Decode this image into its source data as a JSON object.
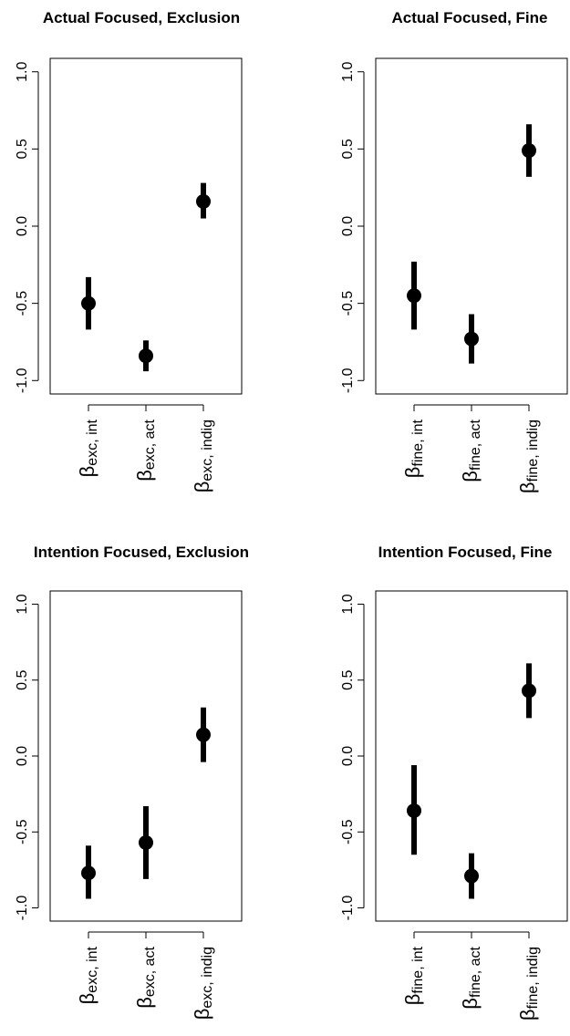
{
  "chart_data": [
    {
      "type": "pointrange",
      "title": "Actual Focused, Exclusion",
      "ylim": [
        -1.0,
        1.0
      ],
      "yticks": [
        1.0,
        0.5,
        0.0,
        -0.5,
        -1.0
      ],
      "ytick_labels": [
        "1.0",
        "0.5",
        "0.0",
        "-0.5",
        "-1.0"
      ],
      "grid": false,
      "categories": [
        {
          "symbol": "β",
          "subscript": "exc, int"
        },
        {
          "symbol": "β",
          "subscript": "exc, act"
        },
        {
          "symbol": "β",
          "subscript": "exc, indig"
        }
      ],
      "points": [
        {
          "estimate": -0.5,
          "lower": -0.67,
          "upper": -0.33
        },
        {
          "estimate": -0.84,
          "lower": -0.94,
          "upper": -0.74
        },
        {
          "estimate": 0.16,
          "lower": 0.05,
          "upper": 0.28
        }
      ]
    },
    {
      "type": "pointrange",
      "title": "Actual Focused, Fine",
      "ylim": [
        -1.0,
        1.0
      ],
      "yticks": [
        1.0,
        0.5,
        0.0,
        -0.5,
        -1.0
      ],
      "ytick_labels": [
        "1.0",
        "0.5",
        "0.0",
        "-0.5",
        "-1.0"
      ],
      "grid": false,
      "categories": [
        {
          "symbol": "β",
          "subscript": "fine, int"
        },
        {
          "symbol": "β",
          "subscript": "fine, act"
        },
        {
          "symbol": "β",
          "subscript": "fine, indig"
        }
      ],
      "points": [
        {
          "estimate": -0.45,
          "lower": -0.67,
          "upper": -0.23
        },
        {
          "estimate": -0.73,
          "lower": -0.89,
          "upper": -0.57
        },
        {
          "estimate": 0.49,
          "lower": 0.32,
          "upper": 0.66
        }
      ]
    },
    {
      "type": "pointrange",
      "title": "Intention Focused, Exclusion",
      "ylim": [
        -1.0,
        1.0
      ],
      "yticks": [
        1.0,
        0.5,
        0.0,
        -0.5,
        -1.0
      ],
      "ytick_labels": [
        "1.0",
        "0.5",
        "0.0",
        "-0.5",
        "-1.0"
      ],
      "grid": false,
      "categories": [
        {
          "symbol": "β",
          "subscript": "exc, int"
        },
        {
          "symbol": "β",
          "subscript": "exc, act"
        },
        {
          "symbol": "β",
          "subscript": "exc, indig"
        }
      ],
      "points": [
        {
          "estimate": -0.77,
          "lower": -0.94,
          "upper": -0.59
        },
        {
          "estimate": -0.57,
          "lower": -0.81,
          "upper": -0.33
        },
        {
          "estimate": 0.14,
          "lower": -0.04,
          "upper": 0.32
        }
      ]
    },
    {
      "type": "pointrange",
      "title": "Intention Focused, Fine",
      "ylim": [
        -1.0,
        1.0
      ],
      "yticks": [
        1.0,
        0.5,
        0.0,
        -0.5,
        -1.0
      ],
      "ytick_labels": [
        "1.0",
        "0.5",
        "0.0",
        "-0.5",
        "-1.0"
      ],
      "grid": false,
      "categories": [
        {
          "symbol": "β",
          "subscript": "fine, int"
        },
        {
          "symbol": "β",
          "subscript": "fine, act"
        },
        {
          "symbol": "β",
          "subscript": "fine, indig"
        }
      ],
      "points": [
        {
          "estimate": -0.36,
          "lower": -0.65,
          "upper": -0.06
        },
        {
          "estimate": -0.79,
          "lower": -0.94,
          "upper": -0.64
        },
        {
          "estimate": 0.43,
          "lower": 0.25,
          "upper": 0.61
        }
      ]
    }
  ],
  "colors": {
    "background": "#ffffff",
    "ink": "#000000"
  }
}
